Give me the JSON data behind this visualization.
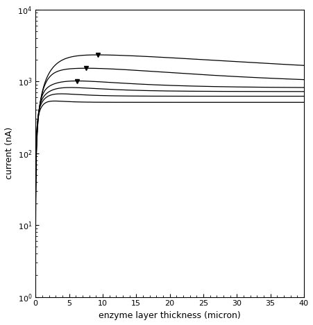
{
  "xlabel": "enzyme layer thickness (micron)",
  "ylabel": "current (nA)",
  "xlim": [
    0,
    40
  ],
  "ylim": [
    1,
    10000
  ],
  "x_ticks": [
    0,
    5,
    10,
    15,
    20,
    25,
    30,
    35,
    40
  ],
  "figsize": [
    4.52,
    4.68
  ],
  "dpi": 100,
  "curves": [
    {
      "tau": 3.5,
      "lam": 0.028,
      "C": 2200,
      "floor": 0,
      "floor_tau": 8.0,
      "floor_asymp": 950,
      "has_marker": true,
      "marker_x": 11.0
    },
    {
      "tau": 2.0,
      "lam": 0.048,
      "C": 1200,
      "floor": 0,
      "floor_tau": 5.0,
      "floor_asymp": 880,
      "has_marker": true,
      "marker_x": 7.0
    },
    {
      "tau": 0.9,
      "lam": 0.1,
      "C": 500,
      "floor": 0,
      "floor_tau": 2.5,
      "floor_asymp": 810,
      "has_marker": true,
      "marker_x": 3.0
    },
    {
      "tau": 0.55,
      "lam": 0.16,
      "C": 320,
      "floor": 0,
      "floor_tau": 1.8,
      "floor_asymp": 720,
      "has_marker": false,
      "marker_x": null
    },
    {
      "tau": 0.35,
      "lam": 0.28,
      "C": 220,
      "floor": 0,
      "floor_tau": 1.2,
      "floor_asymp": 620,
      "has_marker": false,
      "marker_x": null
    },
    {
      "tau": 0.22,
      "lam": 0.5,
      "C": 150,
      "floor": 0,
      "floor_tau": 0.8,
      "floor_asymp": 510,
      "has_marker": false,
      "marker_x": null
    }
  ],
  "background_color": "#ffffff",
  "line_color": "#000000",
  "line_width": 0.9,
  "marker_size": 4,
  "font_size_label": 9,
  "font_size_tick": 8
}
